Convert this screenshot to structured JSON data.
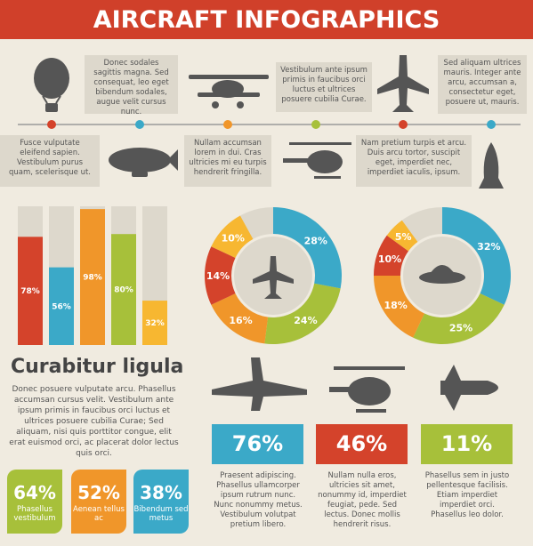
{
  "title": "AIRCRAFT INFOGRAPHICS",
  "timeline": {
    "top_notes": [
      "Donec sodales sagittis magna. Sed consequat, leo eget bibendum sodales, augue velit cursus nunc.",
      "Vestibulum ante ipsum primis in faucibus orci luctus et ultrices posuere cubilia Curae.",
      "Sed aliquam ultrices mauris. Integer ante arcu, accumsan a, consectetur eget, posuere ut, mauris."
    ],
    "bottom_notes": [
      "Fusce vulputate eleifend sapien. Vestibulum purus quam, scelerisque ut.",
      "Nullam accumsan lorem in dui. Cras ultricies mi eu turpis hendrerit fringilla.",
      "Nam pretium turpis et arcu. Duis arcu tortor, suscipit eget, imperdiet nec, imperdiet iaculis, ipsum."
    ]
  },
  "bars": {
    "values": [
      78,
      56,
      98,
      80,
      32
    ],
    "value_labels": [
      "78%",
      "56%",
      "98%",
      "80%",
      "32%"
    ],
    "colors": [
      "#d4432b",
      "#3ba9c8",
      "#f0962a",
      "#a7c03a",
      "#f7b731"
    ]
  },
  "donuts": [
    {
      "values": [
        28,
        24,
        16,
        14,
        10
      ],
      "value_labels": [
        "28%",
        "24%",
        "16%",
        "14%",
        "10%"
      ],
      "colors": [
        "#3ba9c8",
        "#a7c03a",
        "#f0962a",
        "#d4432b",
        "#f7b731"
      ]
    },
    {
      "values": [
        32,
        25,
        18,
        10,
        5
      ],
      "value_labels": [
        "32%",
        "25%",
        "18%",
        "10%",
        "5%"
      ],
      "colors": [
        "#3ba9c8",
        "#a7c03a",
        "#f0962a",
        "#d4432b",
        "#f7b731"
      ]
    }
  ],
  "section": {
    "heading": "Curabitur ligula",
    "text": "Donec posuere vulputate arcu. Phasellus accumsan cursus velit. Vestibulum ante ipsum primis in faucibus orci luctus et ultrices posuere cubilia Curae; Sed aliquam, nisi quis porttitor congue, elit erat euismod orci, ac placerat dolor lectus quis orci."
  },
  "tiles": [
    {
      "value": "64%",
      "label": "Phasellus vestibulum"
    },
    {
      "value": "52%",
      "label": "Aenean tellus ac"
    },
    {
      "value": "38%",
      "label": "Bibendum sed metus"
    }
  ],
  "stats": [
    {
      "value": "76%",
      "text": "Praesent adipiscing. Phasellus ullamcorper ipsum rutrum nunc. Nunc nonummy metus. Vestibulum volutpat pretium libero."
    },
    {
      "value": "46%",
      "text": "Nullam nulla eros, ultricies sit amet, nonummy id, imperdiet feugiat, pede. Sed lectus. Donec mollis hendrerit risus."
    },
    {
      "value": "11%",
      "text": "Phasellus sem in justo pellentesque facilisis. Etiam imperdiet imperdiet orci. Phasellus leo dolor."
    }
  ]
}
